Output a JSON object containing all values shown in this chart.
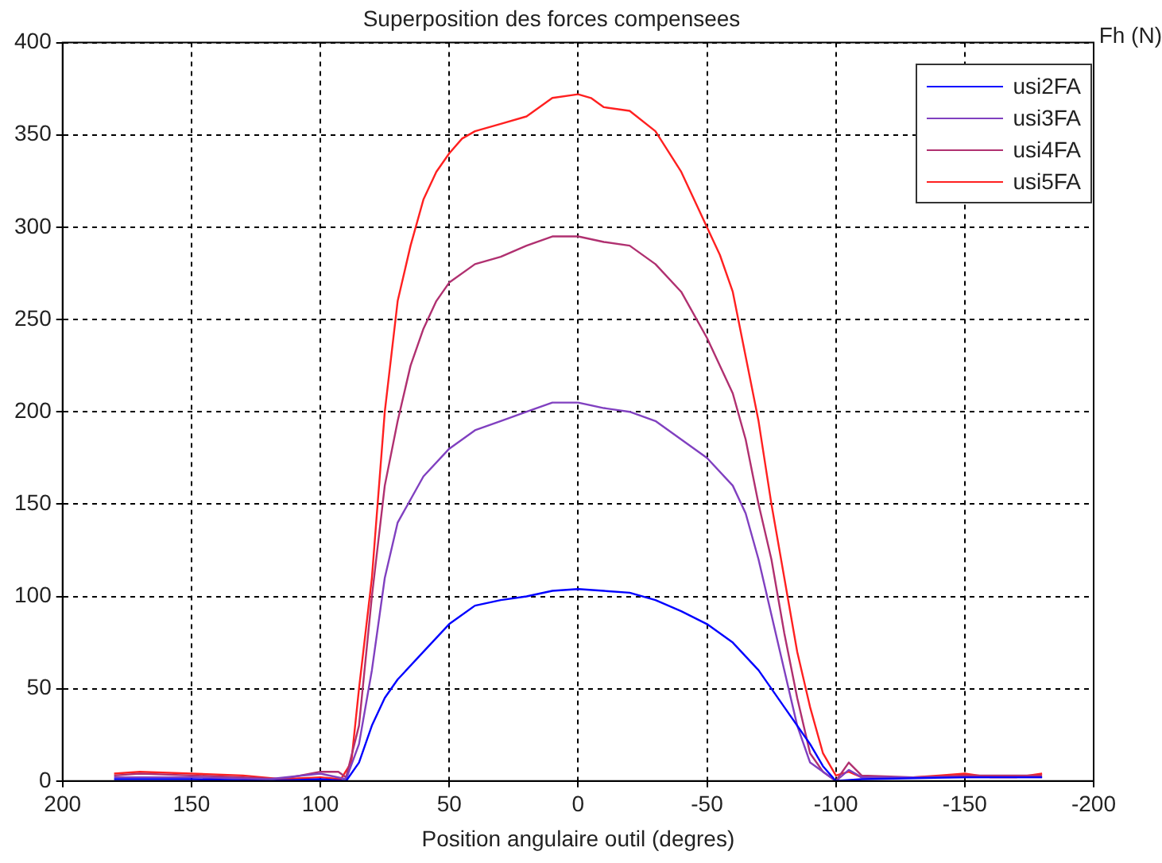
{
  "chart_data": {
    "type": "line",
    "title": "Superposition des forces compensees",
    "xlabel": "Position angulaire outil (degres)",
    "ylabel": "Fh (N)",
    "xlim": [
      200,
      -200
    ],
    "xticks": [
      200,
      150,
      100,
      50,
      0,
      -50,
      -100,
      -150,
      -200
    ],
    "ylim": [
      0,
      400
    ],
    "yticks": [
      0,
      50,
      100,
      150,
      200,
      250,
      300,
      350,
      400
    ],
    "grid": true,
    "legend": "top right",
    "line_style": "solid",
    "marker": "none",
    "series": [
      {
        "name": "usi2FA",
        "color": "#0000ff",
        "x": [
          180,
          150,
          120,
          100,
          90,
          85,
          80,
          75,
          70,
          60,
          50,
          40,
          30,
          20,
          10,
          0,
          -10,
          -20,
          -30,
          -40,
          -50,
          -60,
          -70,
          -80,
          -90,
          -95,
          -100,
          -110,
          -150,
          -180
        ],
        "values": [
          1,
          1,
          0,
          1,
          0,
          10,
          30,
          45,
          55,
          70,
          85,
          95,
          98,
          100,
          103,
          104,
          103,
          102,
          98,
          92,
          85,
          75,
          60,
          40,
          20,
          8,
          0,
          1,
          2,
          2
        ]
      },
      {
        "name": "usi3FA",
        "color": "#8040c0",
        "x": [
          180,
          150,
          120,
          100,
          90,
          85,
          80,
          75,
          70,
          60,
          50,
          40,
          30,
          20,
          10,
          0,
          -10,
          -20,
          -30,
          -40,
          -50,
          -60,
          -65,
          -70,
          -75,
          -80,
          -85,
          -90,
          -100,
          -105,
          -110,
          -180
        ],
        "values": [
          2,
          2,
          1,
          4,
          1,
          20,
          60,
          110,
          140,
          165,
          180,
          190,
          195,
          200,
          205,
          205,
          202,
          200,
          195,
          185,
          175,
          160,
          145,
          120,
          90,
          60,
          30,
          10,
          0,
          6,
          2,
          2
        ]
      },
      {
        "name": "usi4FA",
        "color": "#b03070",
        "x": [
          180,
          170,
          150,
          130,
          115,
          100,
          93,
          90,
          85,
          80,
          75,
          70,
          65,
          60,
          55,
          50,
          40,
          30,
          20,
          10,
          0,
          -10,
          -20,
          -30,
          -40,
          -50,
          -60,
          -65,
          -70,
          -75,
          -80,
          -85,
          -90,
          -95,
          -100,
          -105,
          -110,
          -130,
          -150,
          -180
        ],
        "values": [
          3,
          4,
          3,
          2,
          1,
          5,
          5,
          2,
          30,
          100,
          160,
          195,
          225,
          245,
          260,
          270,
          280,
          284,
          290,
          295,
          295,
          292,
          290,
          280,
          265,
          240,
          210,
          185,
          150,
          120,
          80,
          45,
          15,
          5,
          0,
          10,
          3,
          2,
          3,
          3
        ]
      },
      {
        "name": "usi5FA",
        "color": "#ff2020",
        "x": [
          180,
          170,
          150,
          130,
          115,
          100,
          92,
          88,
          85,
          80,
          75,
          70,
          65,
          60,
          55,
          50,
          45,
          40,
          30,
          20,
          10,
          0,
          -5,
          -10,
          -20,
          -30,
          -40,
          -50,
          -55,
          -60,
          -65,
          -70,
          -75,
          -80,
          -85,
          -90,
          -95,
          -100,
          -105,
          -110,
          -130,
          -140,
          -150,
          -160,
          -170,
          -180
        ],
        "values": [
          4,
          5,
          4,
          3,
          1,
          2,
          1,
          10,
          50,
          110,
          200,
          260,
          290,
          315,
          330,
          340,
          348,
          352,
          356,
          360,
          370,
          372,
          370,
          365,
          363,
          352,
          330,
          300,
          285,
          265,
          230,
          195,
          150,
          110,
          70,
          40,
          15,
          3,
          5,
          2,
          2,
          3,
          4,
          2,
          2,
          4
        ]
      }
    ]
  }
}
